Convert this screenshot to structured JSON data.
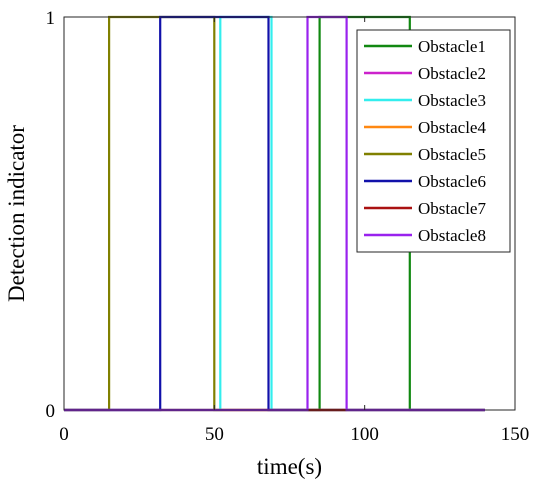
{
  "chart_data": {
    "type": "line",
    "xlabel": "time(s)",
    "ylabel": "Detection indicator",
    "xlim": [
      0,
      150
    ],
    "ylim": [
      0,
      1
    ],
    "xticks": [
      "0",
      "50",
      "100",
      "150"
    ],
    "yticks": [
      "0",
      "1"
    ],
    "grid": false,
    "legend_position": "top-right",
    "series": [
      {
        "name": "Obstacle1",
        "color": "#118811",
        "x": [
          0,
          85,
          85,
          115,
          115,
          140
        ],
        "y": [
          0,
          0,
          1,
          1,
          0,
          0
        ]
      },
      {
        "name": "Obstacle2",
        "color": "#cc22cc",
        "x": [
          0,
          140
        ],
        "y": [
          0,
          0
        ]
      },
      {
        "name": "Obstacle3",
        "color": "#33eeee",
        "x": [
          0,
          52,
          52,
          69,
          69,
          140
        ],
        "y": [
          0,
          0,
          1,
          1,
          0,
          0
        ]
      },
      {
        "name": "Obstacle4",
        "color": "#ff8811",
        "x": [
          0,
          140
        ],
        "y": [
          0,
          0
        ]
      },
      {
        "name": "Obstacle5",
        "color": "#808000",
        "x": [
          0,
          15,
          15,
          50,
          50,
          140
        ],
        "y": [
          0,
          0,
          1,
          1,
          0,
          0
        ]
      },
      {
        "name": "Obstacle6",
        "color": "#1111aa",
        "x": [
          0,
          32,
          32,
          68,
          68,
          140
        ],
        "y": [
          0,
          0,
          1,
          1,
          0,
          0
        ]
      },
      {
        "name": "Obstacle7",
        "color": "#aa1111",
        "x": [
          81,
          94
        ],
        "y": [
          0,
          0
        ]
      },
      {
        "name": "Obstacle8",
        "color": "#9922ee",
        "x": [
          0,
          81,
          81,
          94,
          94,
          140
        ],
        "y": [
          0,
          0,
          1,
          1,
          0,
          0
        ]
      }
    ]
  }
}
